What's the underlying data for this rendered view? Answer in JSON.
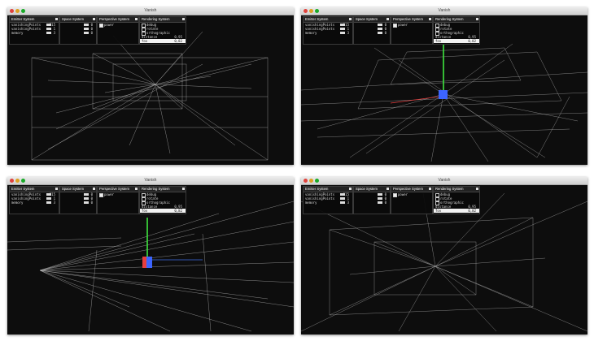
{
  "window_title": "Vanish",
  "colors": {
    "background": "#0d0d0d",
    "lines": "#e6e6e6",
    "axis_y": "#3ee63e",
    "axis_x": "#e63e3e",
    "axis_z": "#3e6ee6",
    "cube": "#3c64ff"
  },
  "panels": {
    "emitter": {
      "title": "Emitter System",
      "rows": [
        {
          "label": "vanishingPoints",
          "value": "315"
        },
        {
          "label": "vanishingPoints",
          "value": "1"
        },
        {
          "label": "memory",
          "value": "3"
        }
      ]
    },
    "space": {
      "title": "Space System",
      "rows": [
        {
          "label": "",
          "value": "0"
        },
        {
          "label": "",
          "value": "0"
        },
        {
          "label": "",
          "value": "0"
        }
      ]
    },
    "perspective": {
      "title": "Perspective System",
      "rows": [
        {
          "label": "power",
          "value": ""
        }
      ]
    },
    "rendering": {
      "title": "Rendering System",
      "rows": [
        {
          "label": "debug",
          "value": ""
        },
        {
          "label": "rotate",
          "value": ""
        },
        {
          "label": "orthographic",
          "value": ""
        },
        {
          "label": "distance",
          "value": "0,95"
        },
        {
          "label": "fov",
          "value": "0,82"
        }
      ]
    }
  }
}
